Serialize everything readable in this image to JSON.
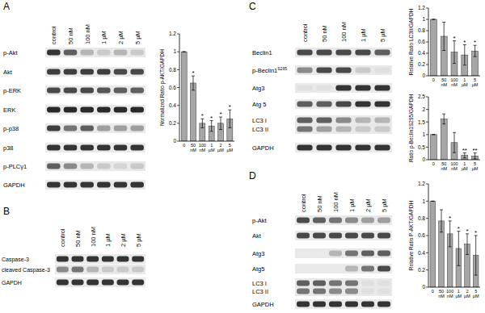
{
  "chart_data": [
    {
      "type": "bar",
      "y_label": "Normalized Ratio p-AKT/GAPDH",
      "categories": [
        "0",
        "50 nM",
        "100 nM",
        "1 µM",
        "2 µM",
        "5 µM"
      ],
      "values": [
        1,
        0.65,
        0.2,
        0.17,
        0.2,
        0.25
      ],
      "errors": [
        0,
        0.08,
        0.05,
        0.06,
        0.07,
        0.1
      ],
      "significance": [
        null,
        "*",
        "*",
        "*",
        "*",
        "*"
      ],
      "color": "#a6a6a6",
      "ylim": [
        0,
        1.2
      ],
      "yticks": [
        0,
        0.2,
        0.4,
        0.6,
        0.8,
        1,
        1.2
      ]
    },
    {
      "type": "bar",
      "y_label": "Relative Ratio LC3II/GAPDH",
      "categories": [
        "0",
        "50 nM",
        "100 nM",
        "1 µM",
        "5 µM"
      ],
      "values": [
        1,
        0.7,
        0.42,
        0.37,
        0.44
      ],
      "errors": [
        0,
        0.25,
        0.2,
        0.18,
        0.1
      ],
      "significance": [
        null,
        null,
        "*",
        "*",
        "*"
      ],
      "color": "#a6a6a6",
      "ylim": [
        0,
        1.2
      ],
      "yticks": [
        0,
        0.2,
        0.4,
        0.6,
        0.8,
        1,
        1.2
      ]
    },
    {
      "type": "bar",
      "y_label": "Ratio p-Beclin1S295/GAPDH",
      "categories": [
        "0",
        "50 nM",
        "100 nM",
        "1 µM",
        "5 µM"
      ],
      "values": [
        1,
        1.62,
        0.68,
        0.17,
        0.15
      ],
      "errors": [
        0,
        0.2,
        0.4,
        0.1,
        0.12
      ],
      "significance": [
        null,
        null,
        null,
        "**",
        "**"
      ],
      "color": "#a6a6a6",
      "ylim": [
        0,
        2.5
      ],
      "yticks": [
        0,
        0.5,
        1,
        1.5,
        2,
        2.5
      ]
    },
    {
      "type": "bar",
      "y_label": "Relative Ratio P-AKT/GAPDH",
      "categories": [
        "0",
        "50 nM",
        "100 nM",
        "1 µM",
        "2 µM",
        "5 µM"
      ],
      "values": [
        1,
        0.77,
        0.62,
        0.45,
        0.5,
        0.37
      ],
      "errors": [
        0,
        0.13,
        0.15,
        0.2,
        0.12,
        0.23
      ],
      "significance": [
        null,
        null,
        "*",
        "*",
        "*",
        "*"
      ],
      "color": "#a6a6a6",
      "ylim": [
        0,
        1.2
      ],
      "yticks": [
        0,
        0.2,
        0.4,
        0.6,
        0.8,
        1,
        1.2
      ]
    }
  ],
  "blots": [
    {
      "panel": "A",
      "lanes": [
        "control",
        "50 nM",
        "100 nM",
        "1 µM",
        "2 µM",
        "5 µM"
      ],
      "rows": [
        {
          "label": "p-Akt",
          "bands": [
            0.9,
            0.7,
            0.3,
            0.2,
            0.3,
            0.2
          ]
        },
        {
          "label": "Akt",
          "bands": [
            0.85,
            0.85,
            0.85,
            0.85,
            0.8,
            0.8
          ]
        },
        {
          "label": "p-ERK",
          "bands": [
            0.8,
            0.8,
            0.8,
            0.75,
            0.7,
            0.7
          ]
        },
        {
          "label": "ERK",
          "bands": [
            0.95,
            0.95,
            0.95,
            0.95,
            0.95,
            0.95
          ]
        },
        {
          "label": "p-p38",
          "bands": [
            0.85,
            0.6,
            0.7,
            0.4,
            0.4,
            0.4
          ]
        },
        {
          "label": "p38",
          "bands": [
            0.9,
            0.9,
            0.9,
            0.9,
            0.9,
            0.9
          ]
        },
        {
          "label": "p-PLCγ1",
          "bands": [
            0.7,
            0.5,
            0.3,
            0.2,
            0.15,
            0.2
          ]
        },
        {
          "label": "GAPDH",
          "bands": [
            0.9,
            0.9,
            0.9,
            0.9,
            0.9,
            0.9
          ]
        }
      ]
    },
    {
      "panel": "B",
      "lanes": [
        "control",
        "50 nM",
        "100 nM",
        "1 µM",
        "2 µM",
        "5 µM"
      ],
      "rows": [
        {
          "label": "Caspase-3",
          "bands": [
            0.9,
            0.9,
            0.9,
            0.9,
            0.9,
            0.9
          ]
        },
        {
          "label": "cleaved Caspase-3",
          "bands": [
            0.5,
            0.6,
            0.3,
            0.2,
            0.2,
            0.2
          ]
        },
        {
          "label": "GAPDH",
          "bands": [
            0.9,
            0.9,
            0.9,
            0.9,
            0.9,
            0.9
          ]
        }
      ]
    },
    {
      "panel": "C",
      "lanes": [
        "control",
        "50 nM",
        "100 nM",
        "1 µM",
        "5 µM"
      ],
      "rows": [
        {
          "label": "Beclin1",
          "bands": [
            0.8,
            0.8,
            0.8,
            0.8,
            0.7
          ]
        },
        {
          "label": "p-Beclin1",
          "superscript": "S295",
          "bands": [
            0.5,
            0.8,
            0.8,
            0.2,
            0.1
          ]
        },
        {
          "label": "Atg3",
          "bands": [
            0.1,
            0.1,
            0.9,
            0.9,
            0.9
          ]
        },
        {
          "label": "Atg 5",
          "bands": [
            0.7,
            0.7,
            0.8,
            0.9,
            0.9
          ]
        },
        {
          "label": "LC3 I",
          "bands": [
            0.7,
            0.7,
            0.5,
            0.3,
            0.3
          ]
        },
        {
          "label": "LC3 II",
          "bands": [
            0.6,
            0.4,
            0.3,
            0.2,
            0.2
          ]
        },
        {
          "label": "GAPDH",
          "bands": [
            0.9,
            0.9,
            0.9,
            0.9,
            0.9
          ]
        }
      ]
    },
    {
      "panel": "D",
      "lanes": [
        "control",
        "50 nM",
        "100 nM",
        "1 µM",
        "2 µM",
        "5 µM"
      ],
      "rows": [
        {
          "label": "p-Akt",
          "bands": [
            0.8,
            0.7,
            0.6,
            0.5,
            0.4,
            0.4
          ]
        },
        {
          "label": "Akt",
          "bands": [
            0.8,
            0.8,
            0.8,
            0.8,
            0.8,
            0.8
          ]
        },
        {
          "label": "Atg3",
          "bands": [
            0.05,
            0.05,
            0.3,
            0.6,
            0.7,
            0.7
          ]
        },
        {
          "label": "Atg5",
          "bands": [
            0.05,
            0.05,
            0.05,
            0.3,
            0.6,
            0.8
          ]
        },
        {
          "label": "LC3 I",
          "bands": [
            0.7,
            0.7,
            0.6,
            0.6,
            0.1,
            0.1
          ]
        },
        {
          "label": "LC3 II",
          "bands": [
            0.6,
            0.6,
            0.5,
            0.5,
            0.1,
            0.1
          ]
        },
        {
          "label": "GAPDH",
          "bands": [
            0.9,
            0.9,
            0.9,
            0.9,
            0.9,
            0.9
          ]
        }
      ]
    }
  ]
}
